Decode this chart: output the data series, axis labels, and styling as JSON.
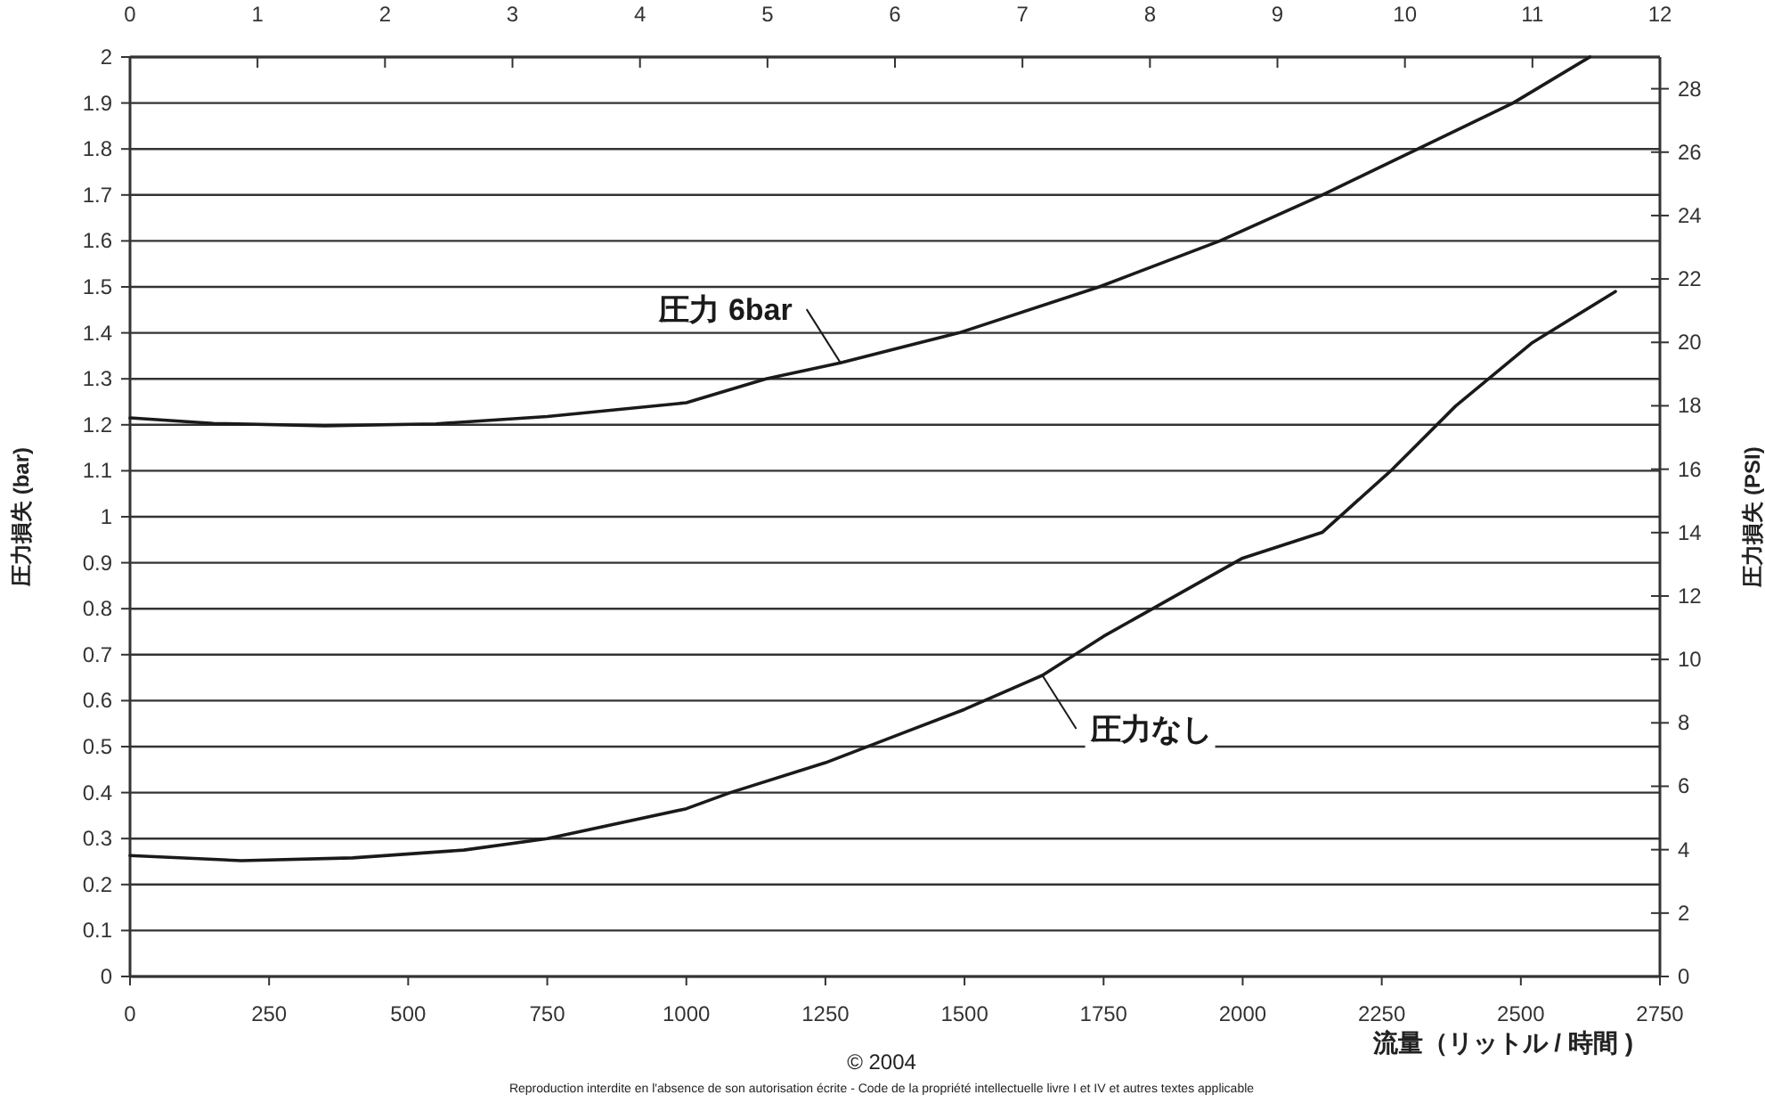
{
  "chart_data": {
    "type": "line",
    "xlabel": "流量（リットル / 時間 )",
    "ylabel": "圧力損失 (bar)",
    "y2label": "圧力損失 (PSI)",
    "xlim": [
      0,
      2750
    ],
    "xticks": [
      0,
      250,
      500,
      750,
      1000,
      1250,
      1500,
      1750,
      2000,
      2250,
      2500,
      2750
    ],
    "ylim": [
      0,
      2
    ],
    "yticks": [
      0,
      0.1,
      0.2,
      0.3,
      0.4,
      0.5,
      0.6,
      0.7,
      0.8,
      0.9,
      1,
      1.1,
      1.2,
      1.3,
      1.4,
      1.5,
      1.6,
      1.7,
      1.8,
      1.9,
      2
    ],
    "y2lim": [
      0,
      29
    ],
    "y2ticks": [
      0,
      2,
      4,
      6,
      8,
      10,
      12,
      14,
      16,
      18,
      20,
      22,
      24,
      26,
      28
    ],
    "x2lim": [
      0,
      12
    ],
    "x2ticks": [
      0,
      1,
      2,
      3,
      4,
      5,
      6,
      7,
      8,
      9,
      10,
      11,
      12
    ],
    "grid": "y",
    "legend": false,
    "marker": "none",
    "line_style": "solid",
    "series": [
      {
        "name": "圧力 6bar",
        "color": "#1a1a1a",
        "x": [
          0,
          150,
          350,
          550,
          750,
          1000,
          1143,
          1277,
          1490,
          1742,
          1959,
          2143,
          2315,
          2486,
          2624
        ],
        "values": [
          1.215,
          1.203,
          1.198,
          1.202,
          1.218,
          1.248,
          1.3,
          1.335,
          1.4,
          1.5,
          1.6,
          1.7,
          1.8,
          1.9,
          2.0
        ]
      },
      {
        "name": "圧力なし",
        "color": "#1a1a1a",
        "x": [
          0,
          200,
          400,
          600,
          750,
          1000,
          1079,
          1250,
          1500,
          1640,
          1750,
          2000,
          2143,
          2269,
          2383,
          2521,
          2670
        ],
        "values": [
          0.263,
          0.252,
          0.258,
          0.275,
          0.3,
          0.365,
          0.4,
          0.465,
          0.581,
          0.655,
          0.74,
          0.91,
          0.966,
          1.103,
          1.241,
          1.379,
          1.49
        ]
      }
    ],
    "annotations": [
      "© 2004",
      "Reproduction interdite en l'absence de son autorisation écrite - Code de la propriété intellectuelle livre I et IV et autres textes applicable"
    ]
  }
}
